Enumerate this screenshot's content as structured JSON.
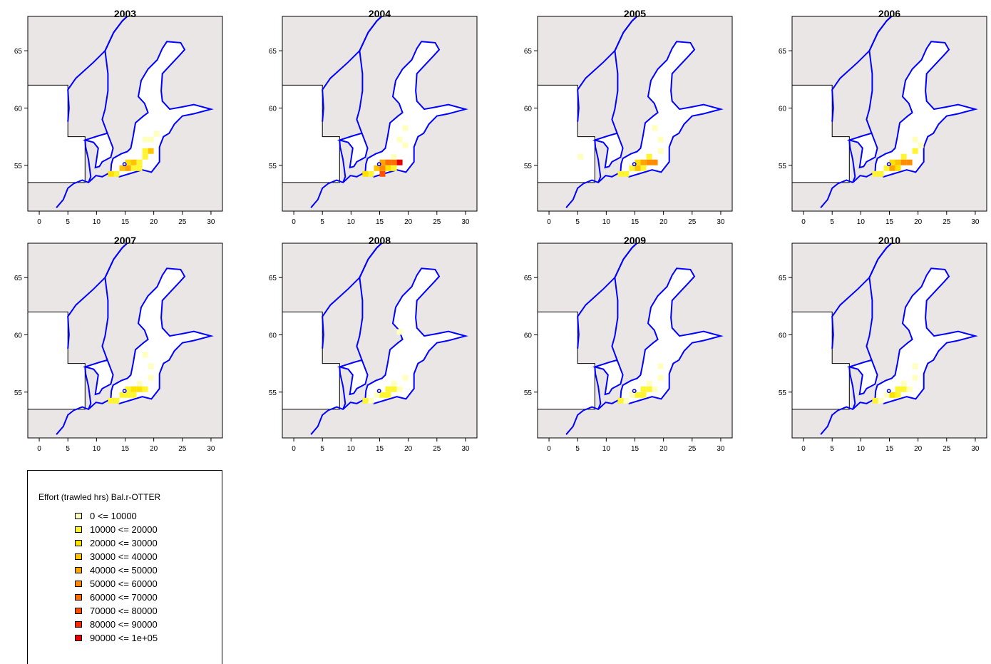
{
  "panels": [
    {
      "year": "2003"
    },
    {
      "year": "2004"
    },
    {
      "year": "2005"
    },
    {
      "year": "2006"
    },
    {
      "year": "2007"
    },
    {
      "year": "2008"
    },
    {
      "year": "2009"
    },
    {
      "year": "2010"
    }
  ],
  "axes": {
    "x_ticks": [
      0,
      5,
      10,
      15,
      20,
      25,
      30
    ],
    "y_ticks": [
      55,
      60,
      65
    ],
    "xlim": [
      -2,
      32
    ],
    "ylim": [
      51,
      68
    ]
  },
  "colors": {
    "background": "#ebe6e6",
    "coastline": "#0000ff",
    "land": "#ffffff"
  },
  "legend": {
    "title": "Effort (trawled hrs) Bal.r-OTTER",
    "items": [
      {
        "label": "0 <= 10000",
        "color": "#ffffbf"
      },
      {
        "label": "10000 <= 20000",
        "color": "#fff533"
      },
      {
        "label": "20000 <= 30000",
        "color": "#ffe100"
      },
      {
        "label": "30000 <= 40000",
        "color": "#ffc300"
      },
      {
        "label": "40000 <= 50000",
        "color": "#ffa500"
      },
      {
        "label": "50000 <= 60000",
        "color": "#ff8c00"
      },
      {
        "label": "60000 <= 70000",
        "color": "#ff6e00"
      },
      {
        "label": "70000 <= 80000",
        "color": "#ff5000"
      },
      {
        "label": "80000 <= 90000",
        "color": "#ff2800"
      },
      {
        "label": "90000 <= 1e+05",
        "color": "#e60000"
      }
    ]
  },
  "effort": {
    "2003": [
      [
        14,
        54.75,
        3
      ],
      [
        15,
        54.75,
        4
      ],
      [
        15,
        55.25,
        2
      ],
      [
        16,
        55.25,
        3
      ],
      [
        17,
        55.25,
        1
      ],
      [
        19,
        56.25,
        3
      ],
      [
        18,
        56.25,
        1
      ],
      [
        13,
        54.25,
        1
      ],
      [
        12,
        54.25,
        2
      ],
      [
        16,
        54.75,
        1
      ],
      [
        17,
        54.75,
        1
      ],
      [
        18,
        55.75,
        1
      ],
      [
        19,
        57.25,
        0
      ],
      [
        20,
        57.75,
        0
      ],
      [
        18,
        57.25,
        0
      ]
    ],
    "2004": [
      [
        14,
        54.75,
        3
      ],
      [
        15,
        54.75,
        5
      ],
      [
        15,
        54.25,
        7
      ],
      [
        16,
        55.25,
        6
      ],
      [
        17,
        55.25,
        6
      ],
      [
        18,
        55.25,
        9
      ],
      [
        15,
        55.25,
        4
      ],
      [
        16,
        54.75,
        2
      ],
      [
        17,
        54.75,
        1
      ],
      [
        12,
        54.25,
        2
      ],
      [
        13,
        54.25,
        1
      ],
      [
        17,
        55.75,
        0
      ],
      [
        19,
        56.75,
        0
      ],
      [
        19,
        58.25,
        0
      ],
      [
        18,
        57.25,
        0
      ]
    ],
    "2005": [
      [
        15,
        54.75,
        3
      ],
      [
        16,
        55.25,
        4
      ],
      [
        17,
        55.25,
        5
      ],
      [
        18,
        55.25,
        5
      ],
      [
        15,
        55.25,
        2
      ],
      [
        16,
        54.75,
        1
      ],
      [
        14,
        54.75,
        1
      ],
      [
        12,
        54.25,
        1
      ],
      [
        13,
        54.25,
        1
      ],
      [
        17,
        55.75,
        1
      ],
      [
        19,
        56.25,
        0
      ],
      [
        5,
        55.75,
        0
      ],
      [
        18,
        58.25,
        0
      ],
      [
        19,
        57.25,
        0
      ]
    ],
    "2006": [
      [
        15,
        54.75,
        4
      ],
      [
        16,
        55.25,
        3
      ],
      [
        17,
        55.25,
        5
      ],
      [
        18,
        55.25,
        5
      ],
      [
        15,
        55.25,
        2
      ],
      [
        16,
        54.75,
        2
      ],
      [
        14,
        54.75,
        1
      ],
      [
        12,
        54.25,
        1
      ],
      [
        13,
        54.25,
        1
      ],
      [
        17,
        55.75,
        1
      ],
      [
        19,
        56.25,
        1
      ],
      [
        20,
        56.75,
        0
      ],
      [
        19,
        57.25,
        0
      ]
    ],
    "2007": [
      [
        15,
        54.75,
        1
      ],
      [
        16,
        55.25,
        2
      ],
      [
        17,
        55.25,
        2
      ],
      [
        18,
        55.25,
        1
      ],
      [
        15,
        55.25,
        1
      ],
      [
        16,
        54.75,
        1
      ],
      [
        14,
        54.75,
        1
      ],
      [
        12,
        54.25,
        1
      ],
      [
        13,
        54.25,
        1
      ],
      [
        17,
        55.75,
        0
      ],
      [
        19,
        56.25,
        0
      ],
      [
        19,
        57.25,
        0
      ],
      [
        18,
        58.25,
        0
      ]
    ],
    "2008": [
      [
        15,
        54.75,
        1
      ],
      [
        16,
        55.25,
        1
      ],
      [
        17,
        55.25,
        1
      ],
      [
        18,
        55.25,
        0
      ],
      [
        16,
        54.75,
        1
      ],
      [
        14,
        54.75,
        0
      ],
      [
        12,
        54.25,
        1
      ],
      [
        13,
        54.25,
        0
      ],
      [
        17,
        55.75,
        0
      ],
      [
        19,
        56.25,
        0
      ],
      [
        18,
        60.25,
        0
      ]
    ],
    "2009": [
      [
        15,
        54.75,
        1
      ],
      [
        16,
        55.25,
        1
      ],
      [
        17,
        55.25,
        1
      ],
      [
        18,
        55.25,
        0
      ],
      [
        16,
        54.75,
        1
      ],
      [
        14,
        54.75,
        0
      ],
      [
        12,
        54.25,
        1
      ],
      [
        13,
        54.25,
        0
      ],
      [
        17,
        55.75,
        0
      ],
      [
        19,
        56.25,
        0
      ],
      [
        19,
        57.25,
        0
      ]
    ],
    "2010": [
      [
        15,
        54.75,
        2
      ],
      [
        16,
        55.25,
        1
      ],
      [
        17,
        55.25,
        1
      ],
      [
        18,
        55.25,
        0
      ],
      [
        16,
        54.75,
        1
      ],
      [
        14,
        54.75,
        0
      ],
      [
        12,
        54.25,
        1
      ],
      [
        13,
        54.25,
        0
      ],
      [
        17,
        55.75,
        0
      ],
      [
        19,
        56.25,
        0
      ],
      [
        19,
        57.25,
        0
      ]
    ]
  }
}
